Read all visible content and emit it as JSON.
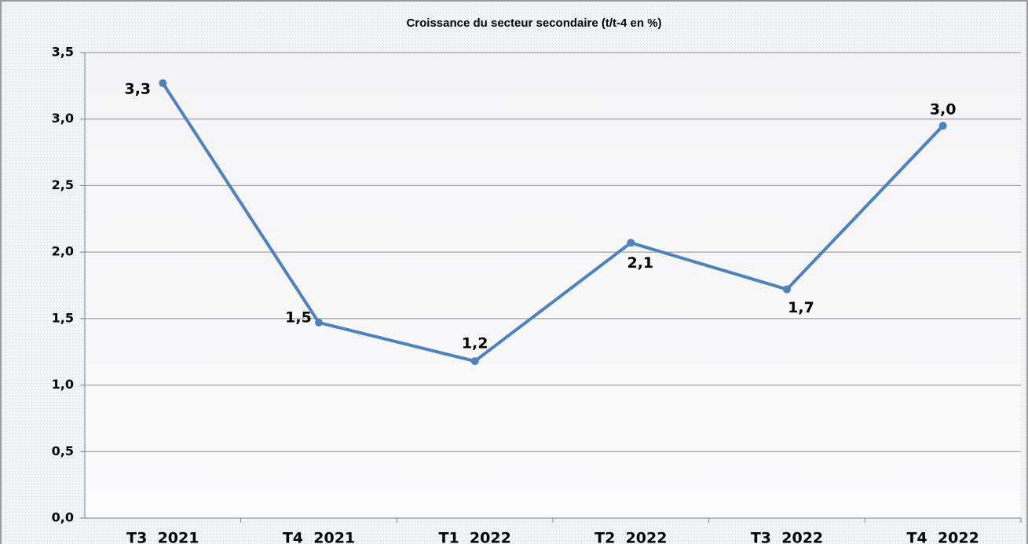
{
  "chart_data": {
    "type": "line",
    "title": "Croissance du secteur secondaire (t/t-4 en %)",
    "categories": [
      "T3  2021",
      "T4  2021",
      "T1  2022",
      "T2  2022",
      "T3  2022",
      "T4  2022"
    ],
    "series": [
      {
        "name": "Croissance du secteur secondaire",
        "color": "#4f81bd",
        "values": [
          3.27,
          1.47,
          1.18,
          2.07,
          1.72,
          2.95
        ],
        "value_labels": [
          "3,3",
          "1,5",
          "1,2",
          "2,1",
          "1,7",
          "3,0"
        ]
      }
    ],
    "ylim": [
      0,
      3.5
    ],
    "yticks": [
      {
        "value": 0,
        "label": "0,0"
      },
      {
        "value": 0.5,
        "label": "0,5"
      },
      {
        "value": 1,
        "label": "1,0"
      },
      {
        "value": 1.5,
        "label": "1,5"
      },
      {
        "value": 2,
        "label": "2,0"
      },
      {
        "value": 2.5,
        "label": "2,5"
      },
      {
        "value": 3,
        "label": "3,0"
      },
      {
        "value": 3.5,
        "label": "3,5"
      }
    ],
    "grid": true
  }
}
